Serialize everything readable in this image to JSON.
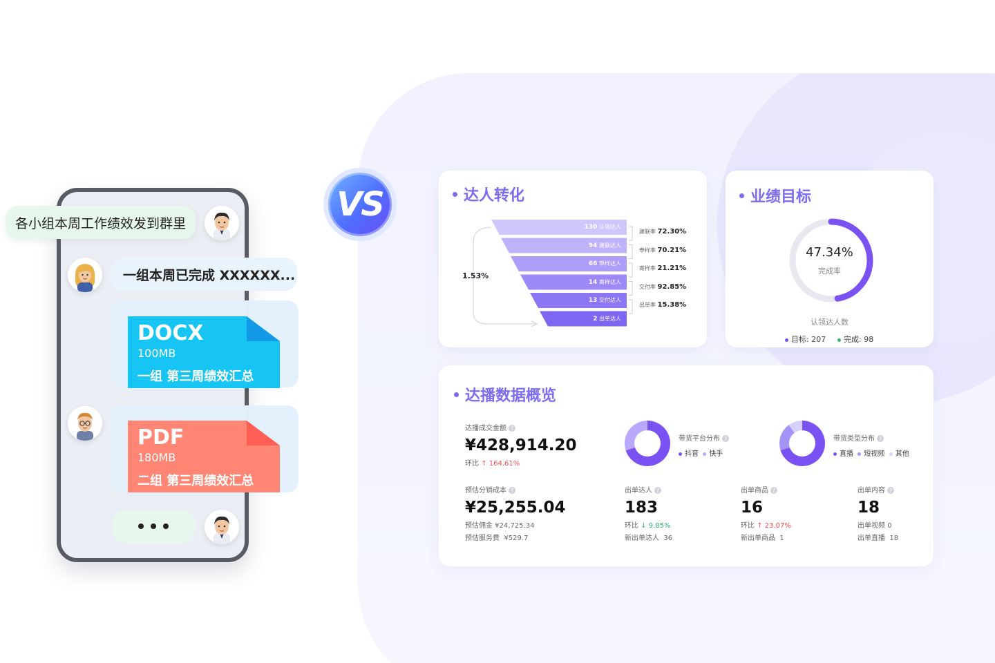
{
  "chat": {
    "msg1": "各小组本周工作绩效发到群里",
    "msg2": "一组本周已完成 XXXXXX...",
    "file1": {
      "type": "DOCX",
      "size": "100MB",
      "name": "一组 第三周绩效汇总"
    },
    "file2": {
      "type": "PDF",
      "size": "180MB",
      "name": "二组 第三周绩效汇总"
    }
  },
  "vs_label": "VS",
  "funnel": {
    "title": "达人转化",
    "overall_rate": "1.53%",
    "stages": [
      {
        "value": "130",
        "label": "认领达人"
      },
      {
        "value": "94",
        "label": "建联达人"
      },
      {
        "value": "66",
        "label": "申样达人"
      },
      {
        "value": "14",
        "label": "寄样达人"
      },
      {
        "value": "13",
        "label": "交付达人"
      },
      {
        "value": "2",
        "label": "出单达人"
      }
    ],
    "rates": [
      {
        "label": "建联率",
        "value": "72.30%"
      },
      {
        "label": "申样率",
        "value": "70.21%"
      },
      {
        "label": "寄样率",
        "value": "21.21%"
      },
      {
        "label": "交付率",
        "value": "92.85%"
      },
      {
        "label": "出单率",
        "value": "15.38%"
      }
    ]
  },
  "target": {
    "title": "业绩目标",
    "percent": "47.34%",
    "percent_value": 47.34,
    "percent_label": "完成率",
    "caption": "认领达人数",
    "goal_text": "目标: 207",
    "done_text": "完成: 98"
  },
  "overview": {
    "title": "达播数据概览",
    "gmv": {
      "label": "达播成交金额",
      "value": "¥428,914.20",
      "ratio_label": "环比",
      "ratio": "↑ 164.61%"
    },
    "platform": {
      "label": "带货平台分布",
      "legend": [
        "抖音",
        "快手"
      ],
      "shares": [
        70,
        30
      ]
    },
    "type_dist": {
      "label": "带货类型分布",
      "legend": [
        "直播",
        "短视频",
        "其他"
      ],
      "shares": [
        70,
        20,
        10
      ]
    },
    "cost": {
      "label": "预估分销成本",
      "value": "¥25,255.04",
      "line1": "预估佣金 ¥24,725.34",
      "line2_label": "预估服务费",
      "line2_value": "¥529.7"
    },
    "creators": {
      "label": "出单达人",
      "value": "183",
      "ratio_label": "环比",
      "ratio": "↓ 9.85%",
      "sub_label": "新出单达人",
      "sub_value": "36"
    },
    "products": {
      "label": "出单商品",
      "value": "16",
      "ratio_label": "环比",
      "ratio": "↑ 23.07%",
      "sub_label": "新出单商品",
      "sub_value": "1"
    },
    "content": {
      "label": "出单内容",
      "value": "18",
      "line1_label": "出单视频",
      "line1_value": "0",
      "line2_label": "出单直播",
      "line2_value": "18"
    }
  },
  "colors": {
    "accent": "#7b6cf0",
    "up": "#f04a4a",
    "down": "#2fb36f",
    "docx": "#17c5f5",
    "pdf": "#ff8675"
  }
}
